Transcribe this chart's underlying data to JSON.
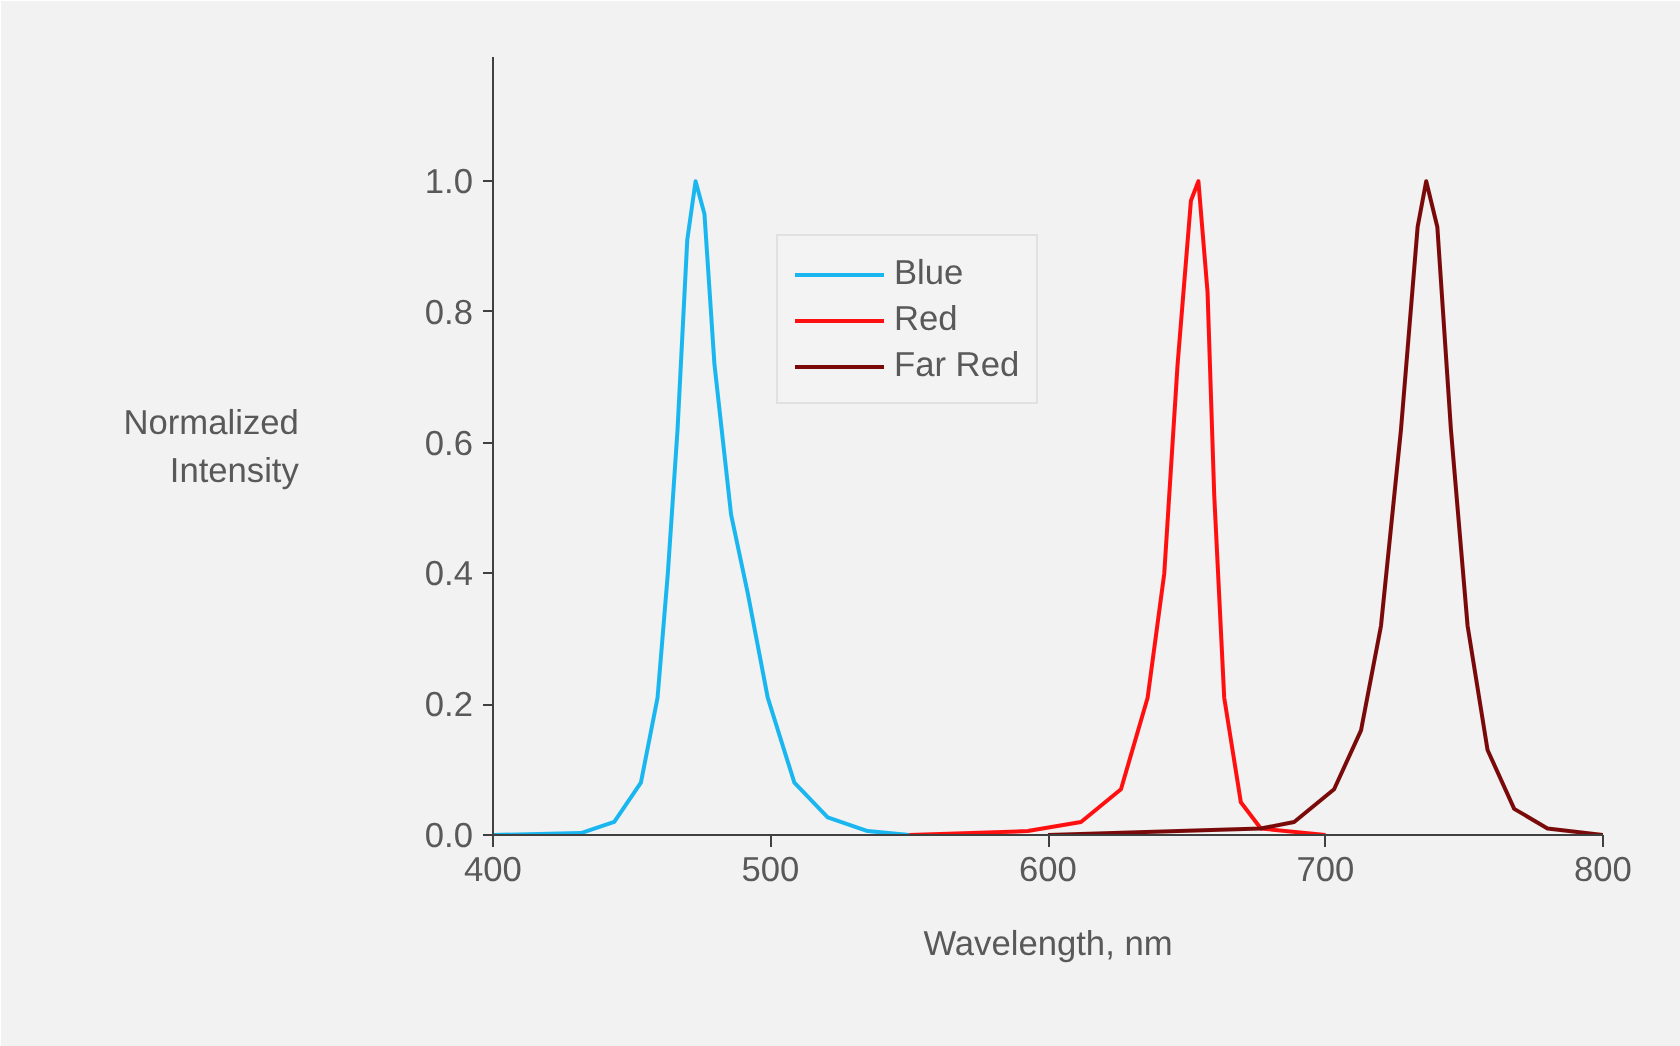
{
  "chart_data": {
    "type": "line",
    "xlabel": "Wavelength, nm",
    "ylabel": "Normalized Intensity",
    "xlim": [
      400,
      800
    ],
    "ylim": [
      0,
      1.19
    ],
    "xticks": [
      400,
      500,
      600,
      700,
      800
    ],
    "yticks": [
      {
        "value": 0,
        "label": "0.0"
      },
      {
        "value": 0.2,
        "label": "0.2"
      },
      {
        "value": 0.4,
        "label": "0.4"
      },
      {
        "value": 0.6,
        "label": "0.6"
      },
      {
        "value": 0.8,
        "label": "0.8"
      },
      {
        "value": 1,
        "label": "1.0"
      }
    ],
    "grid": false,
    "legend": "top",
    "marker": "none",
    "line_style": "solid",
    "series": [
      {
        "name": "Blue",
        "color": "#19b6ef",
        "x": [
          400,
          431.7,
          443.7,
          453.3,
          459.3,
          463,
          466.5,
          470,
          473,
          476.2,
          479.8,
          485.8,
          491.8,
          499,
          508.6,
          520.6,
          535,
          550
        ],
        "values": [
          0,
          0.003,
          0.02,
          0.08,
          0.21,
          0.4,
          0.62,
          0.91,
          1.0,
          0.95,
          0.72,
          0.49,
          0.37,
          0.21,
          0.08,
          0.027,
          0.006,
          0
        ]
      },
      {
        "name": "Red",
        "color": "#ff1010",
        "x": [
          550,
          592.7,
          611.9,
          626.3,
          635.9,
          641.9,
          646.7,
          651.5,
          654.2,
          657.5,
          659.9,
          663.5,
          669.5,
          676.7,
          700
        ],
        "values": [
          0,
          0.006,
          0.02,
          0.07,
          0.21,
          0.4,
          0.72,
          0.97,
          1.0,
          0.83,
          0.52,
          0.21,
          0.05,
          0.01,
          0
        ]
      },
      {
        "name": "Far Red",
        "color": "#7a0a0a",
        "x": [
          600,
          676.7,
          688.7,
          703.1,
          712.8,
          720,
          727.2,
          733.2,
          736.3,
          740.3,
          745.2,
          751.2,
          758.4,
          768,
          780,
          800
        ],
        "values": [
          0,
          0.01,
          0.02,
          0.07,
          0.16,
          0.32,
          0.62,
          0.93,
          1.0,
          0.93,
          0.62,
          0.32,
          0.13,
          0.04,
          0.01,
          0
        ]
      }
    ]
  }
}
